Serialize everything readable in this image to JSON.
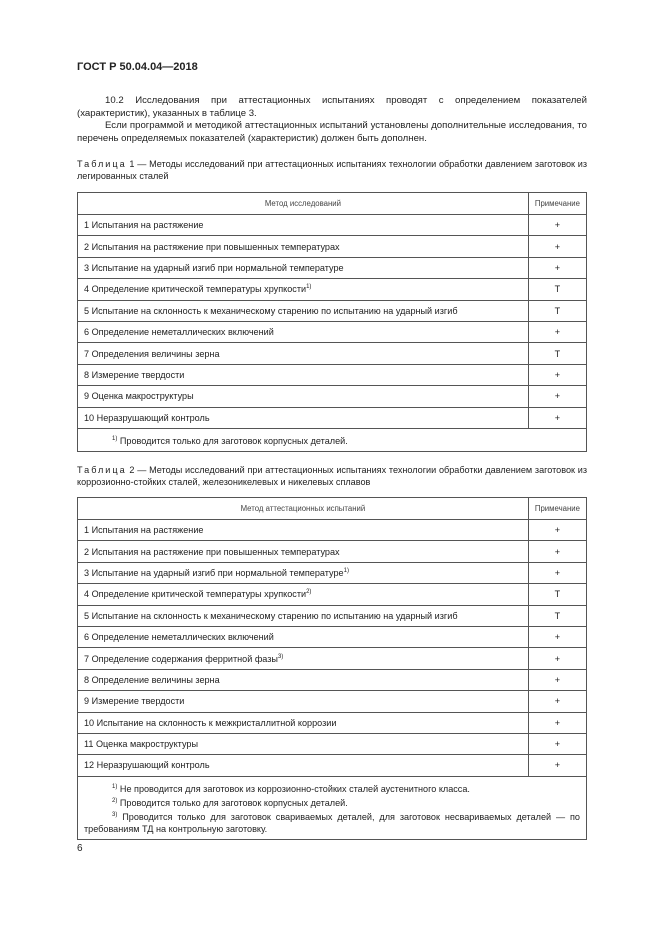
{
  "header": "ГОСТ Р 50.04.04—2018",
  "para1": "10.2 Исследования при аттестационных испытаниях проводят с определением показателей (характеристик), указанных в таблице 3.",
  "para2": "Если программой и методикой аттестационных испытаний установлены дополнительные исследования, то перечень определяемых показателей (характеристик) должен быть дополнен.",
  "table1": {
    "label": "Таблица",
    "caption": " 1 — Методы исследований при аттестационных испытаниях технологии обработки давлением заготовок из легированных сталей",
    "headers": [
      "Метод исследований",
      "Примечание"
    ],
    "rows": [
      [
        "1 Испытания на растяжение",
        "",
        "+"
      ],
      [
        "2 Испытания на растяжение при повышенных температурах",
        "",
        "+"
      ],
      [
        "3 Испытание на ударный изгиб при нормальной температуре",
        "",
        "+"
      ],
      [
        "4 Определение критической температуры хрупкости",
        "1)",
        "Т"
      ],
      [
        "5 Испытание на склонность к механическому старению по испытанию на ударный изгиб",
        "",
        "Т"
      ],
      [
        "6 Определение неметаллических включений",
        "",
        "+"
      ],
      [
        "7 Определения величины зерна",
        "",
        "Т"
      ],
      [
        "8 Измерение твердости",
        "",
        "+"
      ],
      [
        "9 Оценка макроструктуры",
        "",
        "+"
      ],
      [
        "10 Неразрушающий контроль",
        "",
        "+"
      ]
    ],
    "footnotes": [
      {
        "mark": "1)",
        "text": " Проводится только для заготовок корпусных деталей."
      }
    ]
  },
  "table2": {
    "label": "Таблица",
    "caption": " 2 — Методы исследований при аттестационных испытаниях технологии обработки давлением заготовок из коррозионно-стойких сталей, железоникелевых и никелевых сплавов",
    "headers": [
      "Метод аттестационных испытаний",
      "Примечание"
    ],
    "rows": [
      [
        "1 Испытания на растяжение",
        "",
        "+"
      ],
      [
        "2 Испытания на растяжение при повышенных температурах",
        "",
        "+"
      ],
      [
        "3 Испытание на ударный изгиб при нормальной температуре",
        "1)",
        "+"
      ],
      [
        "4 Определение критической температуры хрупкости",
        "2)",
        "Т"
      ],
      [
        "5 Испытание на склонность к механическому старению по испытанию на ударный изгиб",
        "",
        "Т"
      ],
      [
        "6 Определение неметаллических включений",
        "",
        "+"
      ],
      [
        "7 Определение содержания ферритной фазы",
        "3)",
        "+"
      ],
      [
        "8 Определение величины зерна",
        "",
        "+"
      ],
      [
        "9 Измерение твердости",
        "",
        "+"
      ],
      [
        "10 Испытание на склонность к межкристаллитной коррозии",
        "",
        "+"
      ],
      [
        "11 Оценка макроструктуры",
        "",
        "+"
      ],
      [
        "12 Неразрушающий контроль",
        "",
        "+"
      ]
    ],
    "footnotes": [
      {
        "mark": "1)",
        "text": " Не проводится для заготовок из коррозионно-стойких сталей аустенитного класса."
      },
      {
        "mark": "2)",
        "text": " Проводится только для заготовок корпусных деталей."
      },
      {
        "mark": "3)",
        "text": " Проводится только для заготовок свариваемых деталей, для заготовок несвариваемых деталей — по требованиям ТД на контрольную заготовку."
      }
    ]
  },
  "page_number": "6"
}
